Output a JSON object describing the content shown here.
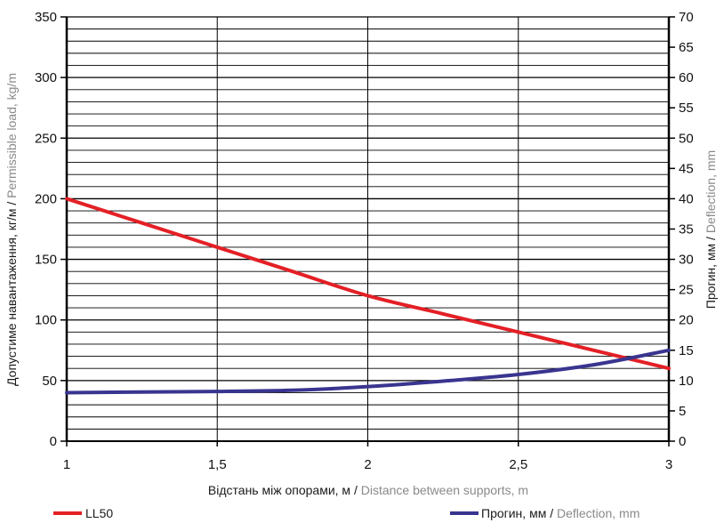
{
  "chart_data": {
    "type": "line",
    "x": [
      1,
      1.25,
      1.5,
      1.75,
      2,
      2.25,
      2.5,
      2.75,
      3
    ],
    "xlim": [
      1,
      3
    ],
    "x_ticks": [
      1,
      1.5,
      2,
      2.5,
      3
    ],
    "x_tick_labels": [
      "1",
      "1,5",
      "2",
      "2,5",
      "3"
    ],
    "xlabel_ua": "Відстань між опорами, м",
    "xlabel_en": "Distance between supports, m",
    "ylim": [
      0,
      350
    ],
    "y_ticks": [
      0,
      50,
      100,
      150,
      200,
      250,
      300,
      350
    ],
    "ylabel_ua": "Допустиме навантаження, кг/м",
    "ylabel_en": "Permissible load, kg/m",
    "y2lim": [
      0,
      70
    ],
    "y2_ticks": [
      0,
      5,
      10,
      15,
      20,
      25,
      30,
      35,
      40,
      45,
      50,
      55,
      60,
      65,
      70
    ],
    "y2label_ua": "Прогин, мм",
    "y2label_en": "Deflection, mm",
    "grid": true,
    "series": [
      {
        "name": "LL50",
        "axis": "left",
        "color": "#e32026",
        "values": [
          200,
          180,
          160,
          140,
          120,
          105,
          90,
          75,
          60
        ]
      },
      {
        "name_ua": "Прогин, мм",
        "name_en": "Deflection, mm",
        "axis": "right",
        "color": "#39358f",
        "values": [
          8,
          8.1,
          8.2,
          8.4,
          9,
          9.9,
          11,
          12.6,
          15
        ]
      }
    ],
    "legend": {
      "placement": "bottom",
      "items": [
        {
          "label": "LL50",
          "color": "#e32026"
        },
        {
          "label_ua": "Прогин, мм",
          "label_en": "Deflection, mm",
          "color": "#39358f"
        }
      ]
    }
  }
}
